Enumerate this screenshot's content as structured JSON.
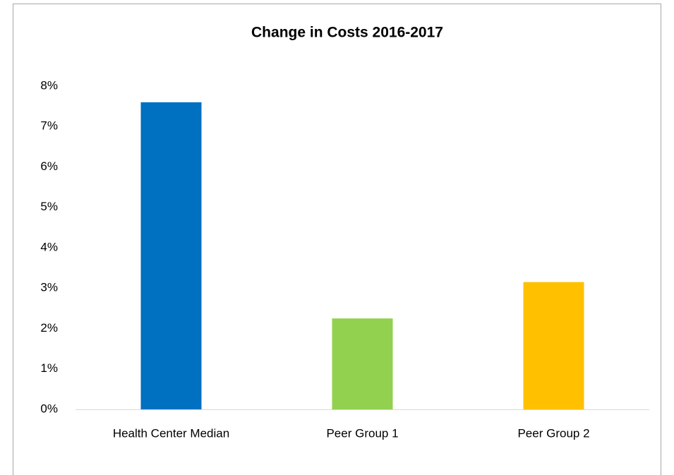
{
  "chart_data": {
    "type": "bar",
    "title": "Change in Costs 2016-2017",
    "categories": [
      "Health Center Median",
      "Peer Group 1",
      "Peer Group 2"
    ],
    "values": [
      7.6,
      2.25,
      3.15
    ],
    "colors": [
      "#0070c0",
      "#92d050",
      "#ffc000"
    ],
    "ylim": [
      0,
      8
    ],
    "yticks": [
      {
        "value": 0,
        "label": "0%"
      },
      {
        "value": 1,
        "label": "1%"
      },
      {
        "value": 2,
        "label": "2%"
      },
      {
        "value": 3,
        "label": "3%"
      },
      {
        "value": 4,
        "label": "4%"
      },
      {
        "value": 5,
        "label": "5%"
      },
      {
        "value": 6,
        "label": "6%"
      },
      {
        "value": 7,
        "label": "7%"
      },
      {
        "value": 8,
        "label": "8%"
      }
    ],
    "grid": false
  }
}
